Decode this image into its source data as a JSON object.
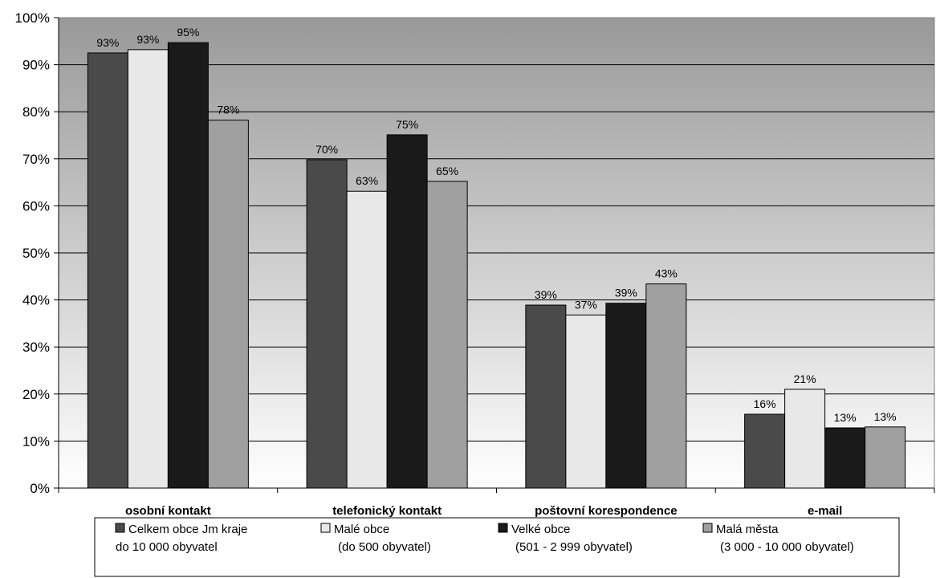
{
  "chart_data": {
    "type": "bar",
    "categories": [
      "osobní kontakt",
      "telefonický kontakt",
      "poštovní korespondence",
      "e-mail"
    ],
    "series": [
      {
        "name_lines": [
          "Celkem obce Jm kraje",
          "do 10 000 obyvatel"
        ],
        "values": [
          0.925,
          0.698,
          0.389,
          0.157
        ],
        "labels": [
          "93%",
          "70%",
          "39%",
          "16%"
        ],
        "color": "#4a4a4a"
      },
      {
        "name_lines": [
          "Malé obce",
          "(do 500 obyvatel)"
        ],
        "values": [
          0.932,
          0.631,
          0.368,
          0.21
        ],
        "labels": [
          "93%",
          "63%",
          "37%",
          "21%"
        ],
        "color": "#e8e8e8"
      },
      {
        "name_lines": [
          "Velké obce",
          "(501 - 2 999 obyvatel)"
        ],
        "values": [
          0.947,
          0.751,
          0.393,
          0.128
        ],
        "labels": [
          "95%",
          "75%",
          "39%",
          "13%"
        ],
        "color": "#1a1a1a"
      },
      {
        "name_lines": [
          "Malá města",
          "(3 000 - 10 000 obyvatel)"
        ],
        "values": [
          0.782,
          0.652,
          0.434,
          0.13
        ],
        "labels": [
          "78%",
          "65%",
          "43%",
          "13%"
        ],
        "color": "#a0a0a0"
      }
    ],
    "ylim": [
      0,
      1
    ],
    "yticks": [
      0,
      0.1,
      0.2,
      0.3,
      0.4,
      0.5,
      0.6,
      0.7,
      0.8,
      0.9,
      1
    ],
    "ytick_labels": [
      "0%",
      "10%",
      "20%",
      "30%",
      "40%",
      "50%",
      "60%",
      "70%",
      "80%",
      "90%",
      "100%"
    ],
    "grid": true,
    "legend_position": "bottom",
    "plot_background": "gradient gray-to-white"
  }
}
